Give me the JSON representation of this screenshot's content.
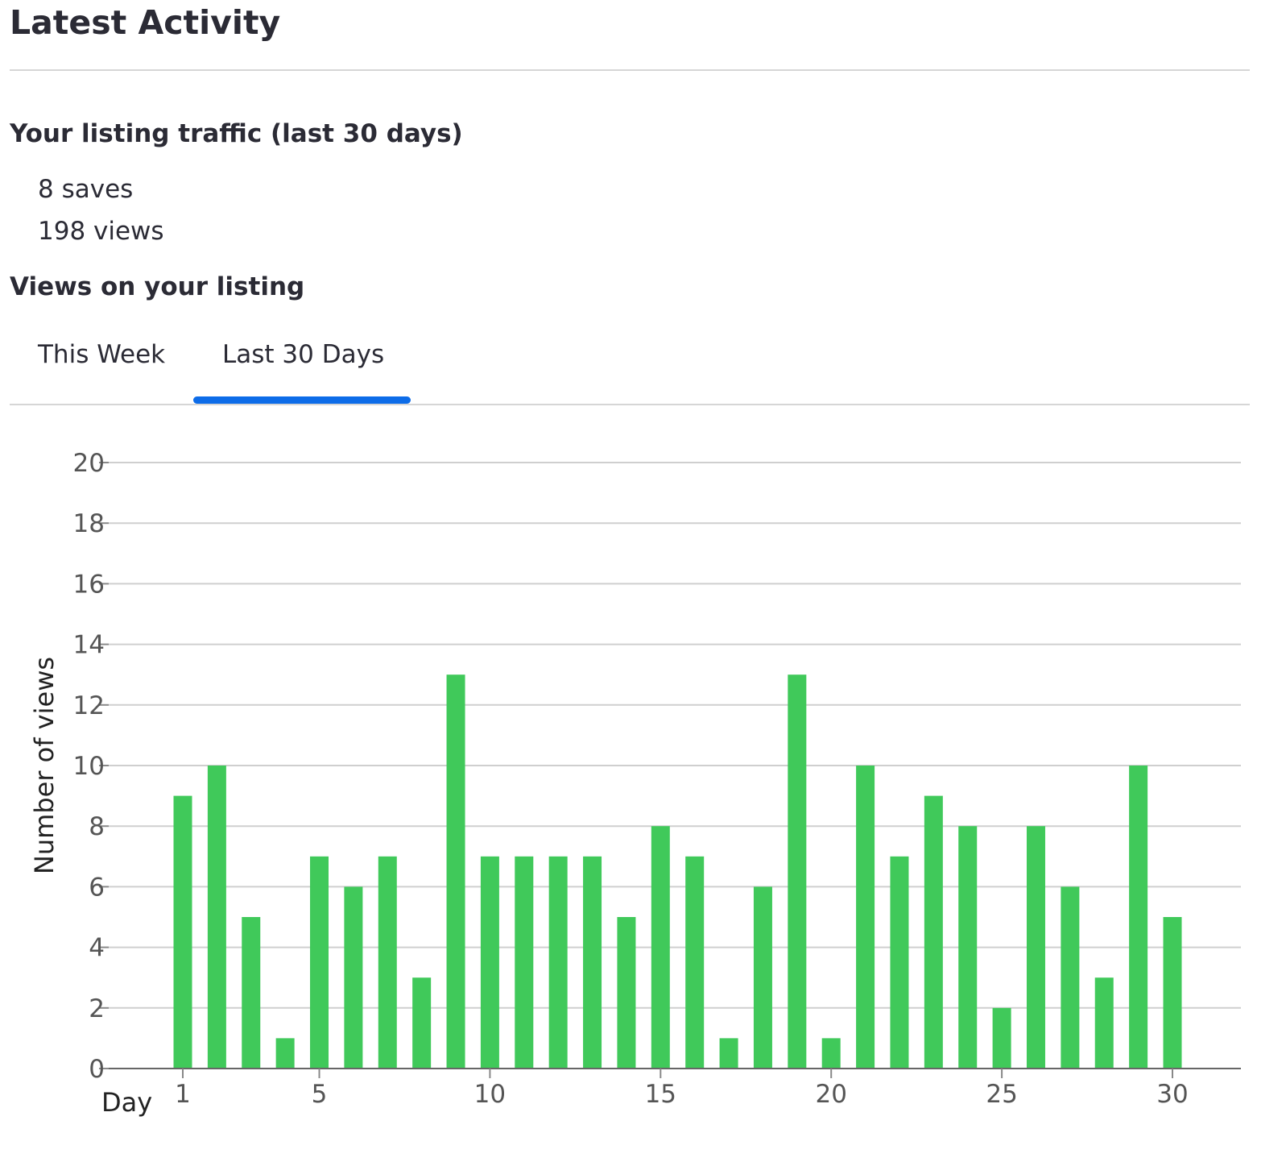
{
  "page": {
    "title": "Latest Activity"
  },
  "traffic": {
    "heading": "Your listing traffic (last 30 days)",
    "saves": "8 saves",
    "views": "198 views"
  },
  "views_section": {
    "heading": "Views on your listing",
    "tabs": [
      {
        "label": "This Week",
        "selected": false
      },
      {
        "label": "Last 30 Days",
        "selected": true
      }
    ]
  },
  "colors": {
    "bar": "#40c95a",
    "tab_indicator": "#0d6ce8",
    "text": "#2b2b35",
    "grid": "#cfcfcf",
    "tick_text": "#555555"
  },
  "chart_data": {
    "type": "bar",
    "xlabel": "Day",
    "ylabel": "Number of views",
    "x": [
      1,
      2,
      3,
      4,
      5,
      6,
      7,
      8,
      9,
      10,
      11,
      12,
      13,
      14,
      15,
      16,
      17,
      18,
      19,
      20,
      21,
      22,
      23,
      24,
      25,
      26,
      27,
      28,
      29,
      30
    ],
    "values": [
      9,
      10,
      5,
      1,
      7,
      6,
      7,
      3,
      13,
      7,
      7,
      7,
      7,
      5,
      8,
      7,
      1,
      6,
      13,
      1,
      10,
      7,
      9,
      8,
      2,
      8,
      6,
      3,
      10,
      5
    ],
    "xticks": [
      1,
      5,
      10,
      15,
      20,
      25,
      30
    ],
    "yticks": [
      0,
      2,
      4,
      6,
      8,
      10,
      12,
      14,
      16,
      18,
      20
    ],
    "ylim": [
      0,
      20
    ],
    "xlim": [
      0.5,
      30.5
    ],
    "grid": true,
    "legend": false
  }
}
